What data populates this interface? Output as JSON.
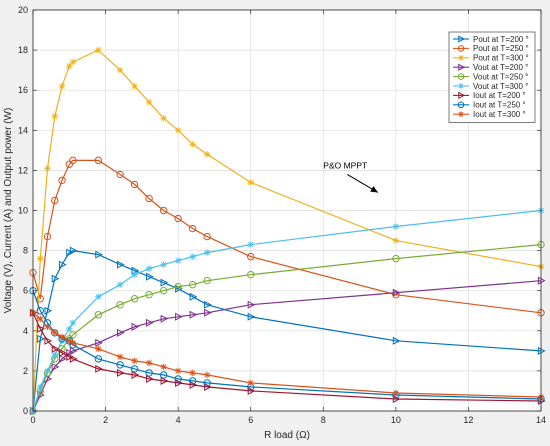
{
  "chart_data": {
    "type": "line",
    "title": "",
    "xlabel": "R load (Ω)",
    "ylabel": "Voltage (V), Current (A) and Output power (W)",
    "xlim": [
      0,
      14
    ],
    "ylim": [
      0,
      20
    ],
    "xticks": [
      0,
      2,
      4,
      6,
      8,
      10,
      12,
      14
    ],
    "yticks": [
      0,
      2,
      4,
      6,
      8,
      10,
      12,
      14,
      16,
      18,
      20
    ],
    "grid": true,
    "legend_position": "top-right",
    "annotation": {
      "text": "P&O MPPT",
      "x": 8.0,
      "y": 12.1,
      "arrow_to": [
        10.0,
        10.9
      ]
    },
    "series": [
      {
        "name": "Pout at T=200 °",
        "color": "#0072BD",
        "marker": "triangle-right",
        "x": [
          0,
          0.2,
          0.4,
          0.6,
          0.8,
          1.0,
          1.1,
          1.8,
          2.4,
          2.8,
          3.2,
          3.6,
          4.0,
          4.4,
          4.8,
          6.0,
          10.0,
          14.0
        ],
        "y": [
          0,
          3.6,
          5.0,
          6.6,
          7.3,
          7.9,
          8.0,
          7.8,
          7.3,
          7.0,
          6.7,
          6.4,
          6.1,
          5.7,
          5.3,
          4.7,
          3.5,
          3.0
        ]
      },
      {
        "name": "Pout at T=250 °",
        "color": "#D95319",
        "marker": "circle",
        "x": [
          0,
          0.2,
          0.4,
          0.6,
          0.8,
          1.0,
          1.1,
          1.8,
          2.4,
          2.8,
          3.2,
          3.6,
          4.0,
          4.4,
          4.8,
          6.0,
          10.0,
          14.0
        ],
        "y": [
          6.9,
          5.6,
          8.7,
          10.5,
          11.5,
          12.3,
          12.5,
          12.5,
          11.8,
          11.3,
          10.6,
          10.0,
          9.6,
          9.1,
          8.7,
          7.7,
          5.8,
          4.9
        ]
      },
      {
        "name": "Pout at T=300 °",
        "color": "#EDB120",
        "marker": "asterisk",
        "x": [
          0,
          0.2,
          0.4,
          0.6,
          0.8,
          1.0,
          1.1,
          1.8,
          2.4,
          2.8,
          3.2,
          3.6,
          4.0,
          4.4,
          4.8,
          6.0,
          10.0,
          14.0
        ],
        "y": [
          0,
          7.6,
          12.1,
          14.7,
          16.2,
          17.2,
          17.4,
          18.0,
          17.0,
          16.2,
          15.4,
          14.6,
          14.0,
          13.3,
          12.8,
          11.4,
          8.5,
          7.2
        ]
      },
      {
        "name": "Vout at T=200 °",
        "color": "#7E2F8E",
        "marker": "triangle-right",
        "x": [
          0,
          0.2,
          0.4,
          0.6,
          0.8,
          1.0,
          1.1,
          1.8,
          2.4,
          2.8,
          3.2,
          3.6,
          4.0,
          4.4,
          4.8,
          6.0,
          10.0,
          14.0
        ],
        "y": [
          0,
          0.8,
          1.6,
          2.2,
          2.6,
          2.9,
          3.0,
          3.4,
          3.9,
          4.2,
          4.4,
          4.6,
          4.7,
          4.8,
          4.9,
          5.3,
          5.9,
          6.5
        ]
      },
      {
        "name": "Vout at T=250 °",
        "color": "#77AC30",
        "marker": "circle",
        "x": [
          0,
          0.2,
          0.4,
          0.6,
          0.8,
          1.0,
          1.1,
          1.8,
          2.4,
          2.8,
          3.2,
          3.6,
          4.0,
          4.4,
          4.8,
          6.0,
          10.0,
          14.0
        ],
        "y": [
          0,
          1.0,
          1.9,
          2.6,
          3.1,
          3.6,
          3.8,
          4.8,
          5.3,
          5.6,
          5.8,
          6.0,
          6.2,
          6.3,
          6.5,
          6.8,
          7.6,
          8.3
        ]
      },
      {
        "name": "Vout at T=300 °",
        "color": "#4DBEEE",
        "marker": "asterisk",
        "x": [
          0,
          0.2,
          0.4,
          0.6,
          0.8,
          1.0,
          1.1,
          1.8,
          2.4,
          2.8,
          3.2,
          3.6,
          4.0,
          4.4,
          4.8,
          6.0,
          10.0,
          14.0
        ],
        "y": [
          0,
          1.2,
          2.0,
          2.8,
          3.5,
          4.1,
          4.4,
          5.7,
          6.3,
          6.8,
          7.1,
          7.3,
          7.5,
          7.7,
          7.9,
          8.3,
          9.2,
          10.0
        ]
      },
      {
        "name": "Iout at T=200 °",
        "color": "#A2142F",
        "marker": "triangle-right",
        "x": [
          0,
          0.2,
          0.4,
          0.6,
          0.8,
          1.0,
          1.1,
          1.8,
          2.4,
          2.8,
          3.2,
          3.6,
          4.0,
          4.4,
          4.8,
          6.0,
          10.0,
          14.0
        ],
        "y": [
          4.9,
          4.1,
          3.5,
          3.1,
          2.9,
          2.7,
          2.6,
          2.1,
          1.9,
          1.8,
          1.6,
          1.5,
          1.4,
          1.3,
          1.2,
          1.0,
          0.6,
          0.5
        ]
      },
      {
        "name": "Iout at T=250 °",
        "color": "#0072BD",
        "marker": "circle",
        "x": [
          0,
          0.2,
          0.4,
          0.6,
          0.8,
          1.0,
          1.1,
          1.8,
          2.4,
          2.8,
          3.2,
          3.6,
          4.0,
          4.4,
          4.8,
          6.0,
          10.0,
          14.0
        ],
        "y": [
          6.0,
          5.0,
          4.4,
          3.9,
          3.6,
          3.5,
          3.3,
          2.6,
          2.3,
          2.1,
          1.9,
          1.8,
          1.6,
          1.5,
          1.4,
          1.2,
          0.8,
          0.6
        ]
      },
      {
        "name": "Iout at T=300 °",
        "color": "#D95319",
        "marker": "asterisk",
        "x": [
          0,
          0.2,
          0.4,
          0.6,
          0.8,
          1.0,
          1.1,
          1.8,
          2.4,
          2.8,
          3.2,
          3.6,
          4.0,
          4.4,
          4.8,
          6.0,
          10.0,
          14.0
        ],
        "y": [
          4.9,
          4.6,
          4.2,
          3.9,
          3.7,
          3.5,
          3.4,
          3.1,
          2.7,
          2.5,
          2.4,
          2.2,
          2.0,
          1.9,
          1.8,
          1.4,
          0.9,
          0.7
        ]
      }
    ]
  }
}
